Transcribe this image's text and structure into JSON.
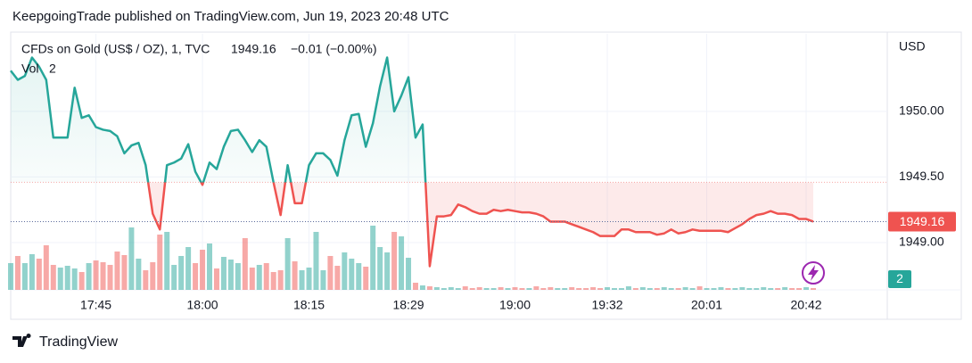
{
  "header": "KeepgoingTrade published on TradingView.com, Jun 19, 2023 20:48 UTC",
  "brand": "TradingView",
  "chart_data": {
    "type": "baseline",
    "title": "CFDs on Gold (US$ / OZ), 1, TVC",
    "last_price": 1949.16,
    "change_label": "−0.01 (−0.00%)",
    "currency": "USD",
    "baseline": 1949.46,
    "up_color": "#26a69a",
    "down_color": "#ef5350",
    "grid": true,
    "ylim": [
      1948.64,
      1950.59
    ],
    "yticks": [
      {
        "value": 1949,
        "label": "1949.00"
      },
      {
        "value": 1949.5,
        "label": "1949.50"
      },
      {
        "value": 1950,
        "label": "1950.00"
      }
    ],
    "categories": [
      null,
      null,
      null,
      null,
      null,
      null,
      null,
      null,
      null,
      null,
      null,
      null,
      "17:45",
      null,
      null,
      null,
      null,
      null,
      null,
      null,
      null,
      null,
      null,
      null,
      null,
      null,
      null,
      "18:00",
      null,
      null,
      null,
      null,
      null,
      null,
      null,
      null,
      null,
      null,
      null,
      null,
      null,
      null,
      "18:15",
      null,
      null,
      null,
      null,
      null,
      null,
      null,
      null,
      null,
      null,
      null,
      null,
      null,
      "18:29",
      null,
      null,
      null,
      null,
      null,
      null,
      null,
      null,
      null,
      null,
      null,
      null,
      null,
      null,
      "19:00",
      null,
      null,
      null,
      null,
      null,
      null,
      null,
      null,
      null,
      null,
      null,
      null,
      "19:32",
      null,
      null,
      null,
      null,
      null,
      null,
      null,
      null,
      null,
      null,
      null,
      null,
      null,
      "20:01",
      null,
      null,
      null,
      null,
      null,
      null,
      null,
      null,
      null,
      null,
      null,
      null,
      null,
      "20:42",
      null
    ],
    "values": [
      1950.31,
      1950.24,
      1950.27,
      1950.41,
      1950.34,
      1950.24,
      1949.8,
      1949.8,
      1949.8,
      1950.18,
      1949.95,
      1949.97,
      1949.88,
      1949.86,
      1949.85,
      1949.81,
      1949.68,
      1949.74,
      1949.76,
      1949.59,
      1949.22,
      1949.1,
      1949.59,
      1949.61,
      1949.64,
      1949.75,
      1949.54,
      1949.44,
      1949.61,
      1949.56,
      1949.73,
      1949.85,
      1949.86,
      1949.78,
      1949.69,
      1949.78,
      1949.73,
      1949.46,
      1949.21,
      1949.59,
      1949.3,
      1949.3,
      1949.59,
      1949.68,
      1949.68,
      1949.63,
      1949.51,
      1949.78,
      1949.97,
      1949.98,
      1949.73,
      1949.91,
      1950.19,
      1950.41,
      1950.0,
      1950.12,
      1950.26,
      1949.8,
      1949.9,
      1948.82,
      1949.2,
      1949.2,
      1949.21,
      1949.29,
      1949.27,
      1949.24,
      1949.22,
      1949.22,
      1949.25,
      1949.24,
      1949.25,
      1949.24,
      1949.23,
      1949.23,
      1949.22,
      1949.2,
      1949.16,
      1949.16,
      1949.16,
      1949.14,
      1949.12,
      1949.1,
      1949.08,
      1949.05,
      1949.05,
      1949.05,
      1949.1,
      1949.1,
      1949.08,
      1949.08,
      1949.08,
      1949.06,
      1949.07,
      1949.1,
      1949.07,
      1949.08,
      1949.1,
      1949.09,
      1949.09,
      1949.09,
      1949.09,
      1949.08,
      1949.11,
      1949.14,
      1949.18,
      1949.21,
      1949.22,
      1949.24,
      1949.22,
      1949.22,
      1949.21,
      1949.18,
      1949.18,
      1949.16
    ],
    "y2lim": [
      0,
      287
    ],
    "volume": {
      "name": "Vol",
      "axis": "y2",
      "values": [
        30,
        38,
        30,
        40,
        35,
        50,
        28,
        25,
        27,
        24,
        20,
        30,
        33,
        31,
        28,
        43,
        39,
        70,
        35,
        22,
        31,
        62,
        65,
        28,
        38,
        48,
        30,
        45,
        52,
        24,
        37,
        34,
        30,
        58,
        25,
        28,
        30,
        20,
        22,
        58,
        32,
        22,
        25,
        65,
        22,
        38,
        27,
        42,
        35,
        30,
        26,
        72,
        48,
        42,
        65,
        60,
        36,
        8,
        5,
        4,
        3,
        2,
        3,
        2,
        4,
        2,
        3,
        2,
        2,
        3,
        2,
        3,
        2,
        2,
        4,
        2,
        3,
        2,
        2,
        3,
        2,
        2,
        3,
        2,
        3,
        2,
        2,
        4,
        2,
        3,
        2,
        2,
        3,
        2,
        2,
        3,
        2,
        4,
        2,
        2,
        3,
        2,
        2,
        3,
        2,
        2,
        3,
        2,
        2,
        3,
        2,
        2,
        3,
        2
      ]
    }
  }
}
